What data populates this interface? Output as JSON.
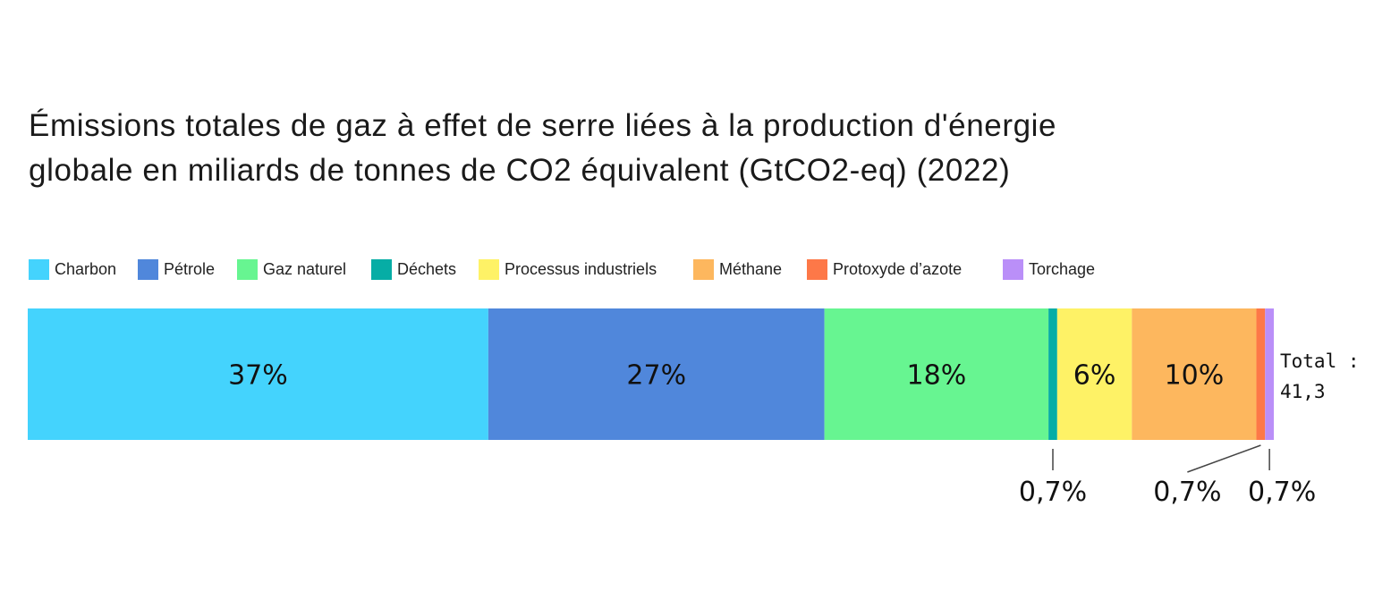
{
  "title_line1": "Émissions totales de gaz à effet de serre liées à la production d'énergie",
  "title_line2": "globale en miliards de tonnes de CO2 équivalent (GtCO2-eq) (2022)",
  "chart_data": {
    "type": "bar",
    "orientation": "horizontal-stacked",
    "title": "Émissions totales de gaz à effet de serre liées à la production d'énergie globale en miliards de tonnes de CO2 équivalent (GtCO2-eq) (2022)",
    "unit": "%",
    "series": [
      {
        "name": "Charbon",
        "value": 37,
        "label": "37%",
        "color": "#44D3FD"
      },
      {
        "name": "Pétrole",
        "value": 27,
        "label": "27%",
        "color": "#5087DB"
      },
      {
        "name": "Gaz naturel",
        "value": 18,
        "label": "18%",
        "color": "#67F591"
      },
      {
        "name": "Déchets",
        "value": 0.7,
        "label": "0,7%",
        "color": "#06ADA5"
      },
      {
        "name": "Processus industriels",
        "value": 6,
        "label": "6%",
        "color": "#FEF266"
      },
      {
        "name": "Méthane",
        "value": 10,
        "label": "10%",
        "color": "#FDB75E"
      },
      {
        "name": "Protoxyde d’azote",
        "value": 0.7,
        "label": "0,7%",
        "color": "#FD7848"
      },
      {
        "name": "Torchage",
        "value": 0.7,
        "label": "0,7%",
        "color": "#BA8FF8"
      }
    ],
    "total_label_line1": "Total :",
    "total_label_line2": "41,3",
    "legend_position": "top",
    "grid": false
  }
}
